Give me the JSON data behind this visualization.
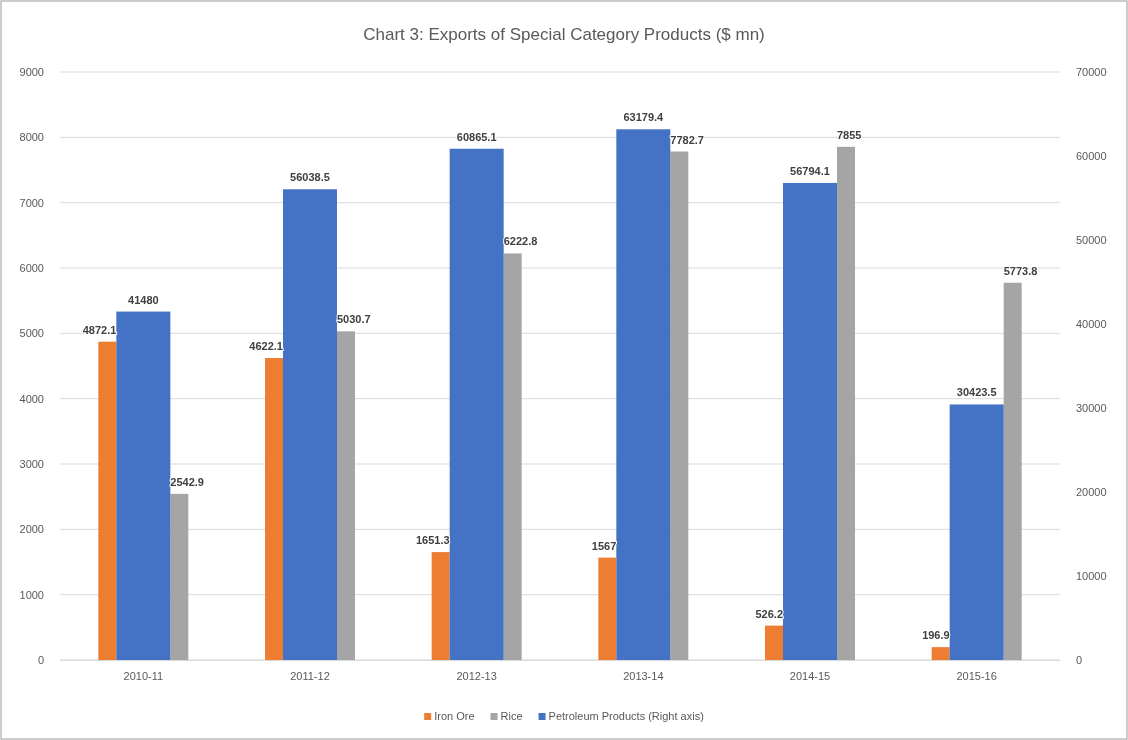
{
  "chart_data": {
    "type": "bar",
    "title": "Chart 3: Exports of Special Category Products ($ mn)",
    "categories": [
      "2010-11",
      "2011-12",
      "2012-13",
      "2013-14",
      "2014-15",
      "2015-16"
    ],
    "series": [
      {
        "name": "Iron Ore",
        "color": "#ed7d31",
        "values": [
          4872.1,
          4622.1,
          1651.3,
          1567,
          526.2,
          196.9
        ]
      },
      {
        "name": "Rice",
        "color": "#a5a5a5",
        "values": [
          2542.9,
          5030.7,
          6222.8,
          7782.7,
          7855,
          5773.8
        ]
      },
      {
        "name": "Petroleum Products (Right axis)",
        "color": "#4472c4",
        "axis": "y2",
        "values": [
          41480,
          56038.5,
          60865.1,
          63179.4,
          56794.1,
          30423.5
        ]
      }
    ],
    "ylim": [
      0,
      9000
    ],
    "yticks": [
      0,
      1000,
      2000,
      3000,
      4000,
      5000,
      6000,
      7000,
      8000,
      9000
    ],
    "y2lim": [
      0,
      70000
    ],
    "y2ticks": [
      0,
      10000,
      20000,
      30000,
      40000,
      50000,
      60000,
      70000
    ],
    "grid": "y",
    "legend": "bottom",
    "data_labels": true
  }
}
